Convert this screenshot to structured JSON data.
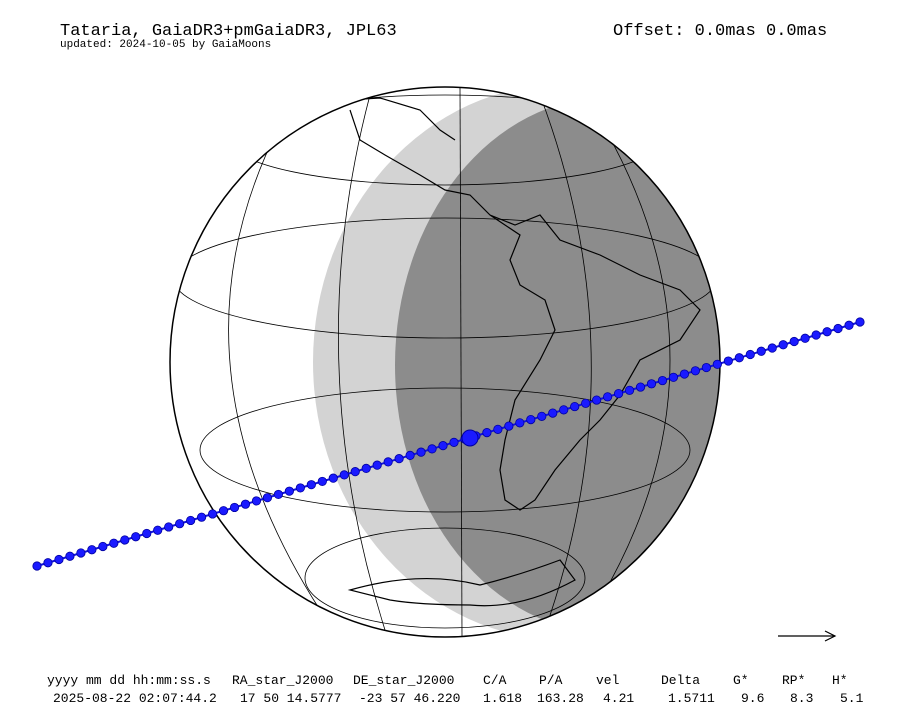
{
  "header": {
    "title": "Tataria, GaiaDR3+pmGaiaDR3, JPL63",
    "subtitle": "updated: 2024-10-05 by GaiaMoons",
    "offset": "Offset: 0.0mas 0.0mas"
  },
  "table": {
    "columns": [
      "yyyy mm dd hh:mm:ss.s",
      "RA_star_J2000",
      "DE_star_J2000",
      "C/A",
      "P/A",
      "vel",
      "Delta",
      "G*",
      "RP*",
      "H*"
    ],
    "rows": [
      [
        "2025-08-22 02:07:44.2",
        "17 50 14.5777",
        "-23 57 46.220",
        1.618,
        163.28,
        4.21,
        1.5711,
        9.6,
        8.3,
        5.1
      ]
    ]
  }
}
